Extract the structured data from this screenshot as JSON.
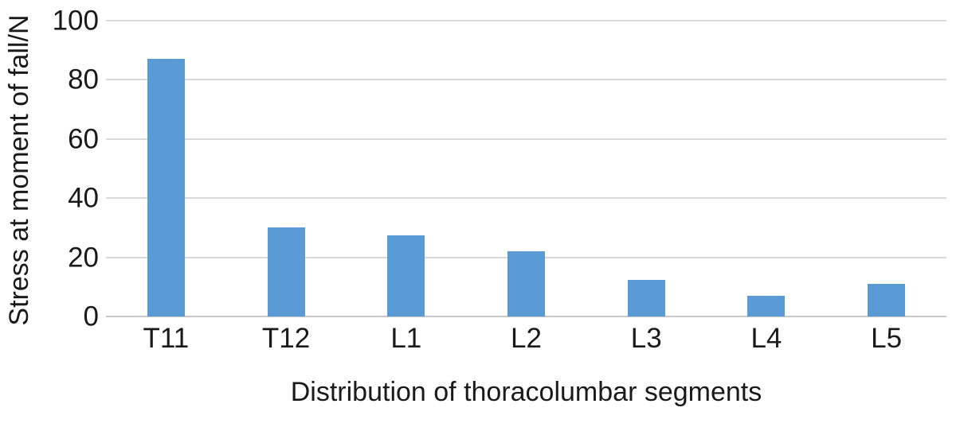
{
  "chart_data": {
    "type": "bar",
    "categories": [
      "T11",
      "T12",
      "L1",
      "L2",
      "L3",
      "L4",
      "L5"
    ],
    "values": [
      87,
      30,
      27.5,
      22,
      12.5,
      7,
      11
    ],
    "xlabel": "Distribution of thoracolumbar segments",
    "ylabel": "Stress at moment of fall/N",
    "ylim": [
      0,
      100
    ],
    "yticks": [
      0,
      20,
      40,
      60,
      80,
      100
    ],
    "grid": true,
    "legend": "none",
    "bar_color": "#5b9bd5",
    "gridline_color": "#d9d9d9",
    "baseline_color": "#c9c9c9",
    "text_color": "#1a1a1a"
  }
}
